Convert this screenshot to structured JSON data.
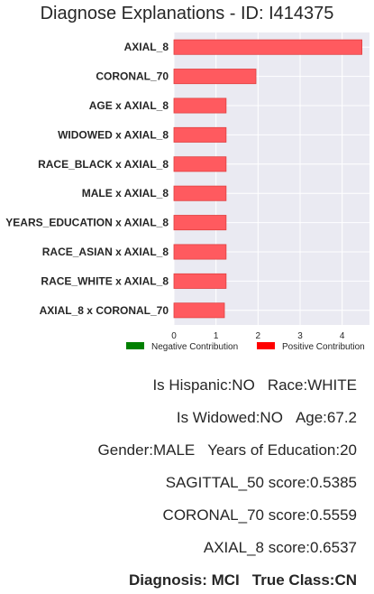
{
  "chart_data": {
    "type": "bar",
    "orientation": "horizontal",
    "title": "Diagnose Explanations - ID: I414375",
    "categories": [
      "AXIAL_8",
      "CORONAL_70",
      "AGE x AXIAL_8",
      "WIDOWED x AXIAL_8",
      "RACE_BLACK x AXIAL_8",
      "MALE x AXIAL_8",
      "YEARS_EDUCATION x AXIAL_8",
      "RACE_ASIAN x AXIAL_8",
      "RACE_WHITE x AXIAL_8",
      "AXIAL_8 x CORONAL_70"
    ],
    "values": [
      4.47,
      1.95,
      1.24,
      1.24,
      1.24,
      1.24,
      1.24,
      1.24,
      1.24,
      1.2
    ],
    "xlim": [
      0,
      4.65
    ],
    "xticks": [
      "0",
      "1",
      "2",
      "3",
      "4"
    ],
    "xlabel": "",
    "ylabel": "",
    "grid": true,
    "legend_position": "bottom",
    "legend": [
      {
        "name": "Negative Contribution",
        "color": "#008000"
      },
      {
        "name": "Positive Contribution",
        "color": "#ff0000"
      }
    ],
    "bar_color": "#ff5a5f",
    "bar_edge_color": "#e04040"
  },
  "info": {
    "hispanic": "Is Hispanic:NO",
    "race": "Race:WHITE",
    "widowed": "Is Widowed:NO",
    "age": "Age:67.2",
    "gender": "Gender:MALE",
    "education": "Years of Education:20",
    "sagittal": "SAGITTAL_50 score:0.5385",
    "coronal": "CORONAL_70 score:0.5559",
    "axial": "AXIAL_8 score:0.6537",
    "diagnosis": "Diagnosis: MCI",
    "true_class": "True Class:CN"
  },
  "colors": {
    "plot_background": "#eaeaf2",
    "grid": "#ffffff"
  }
}
